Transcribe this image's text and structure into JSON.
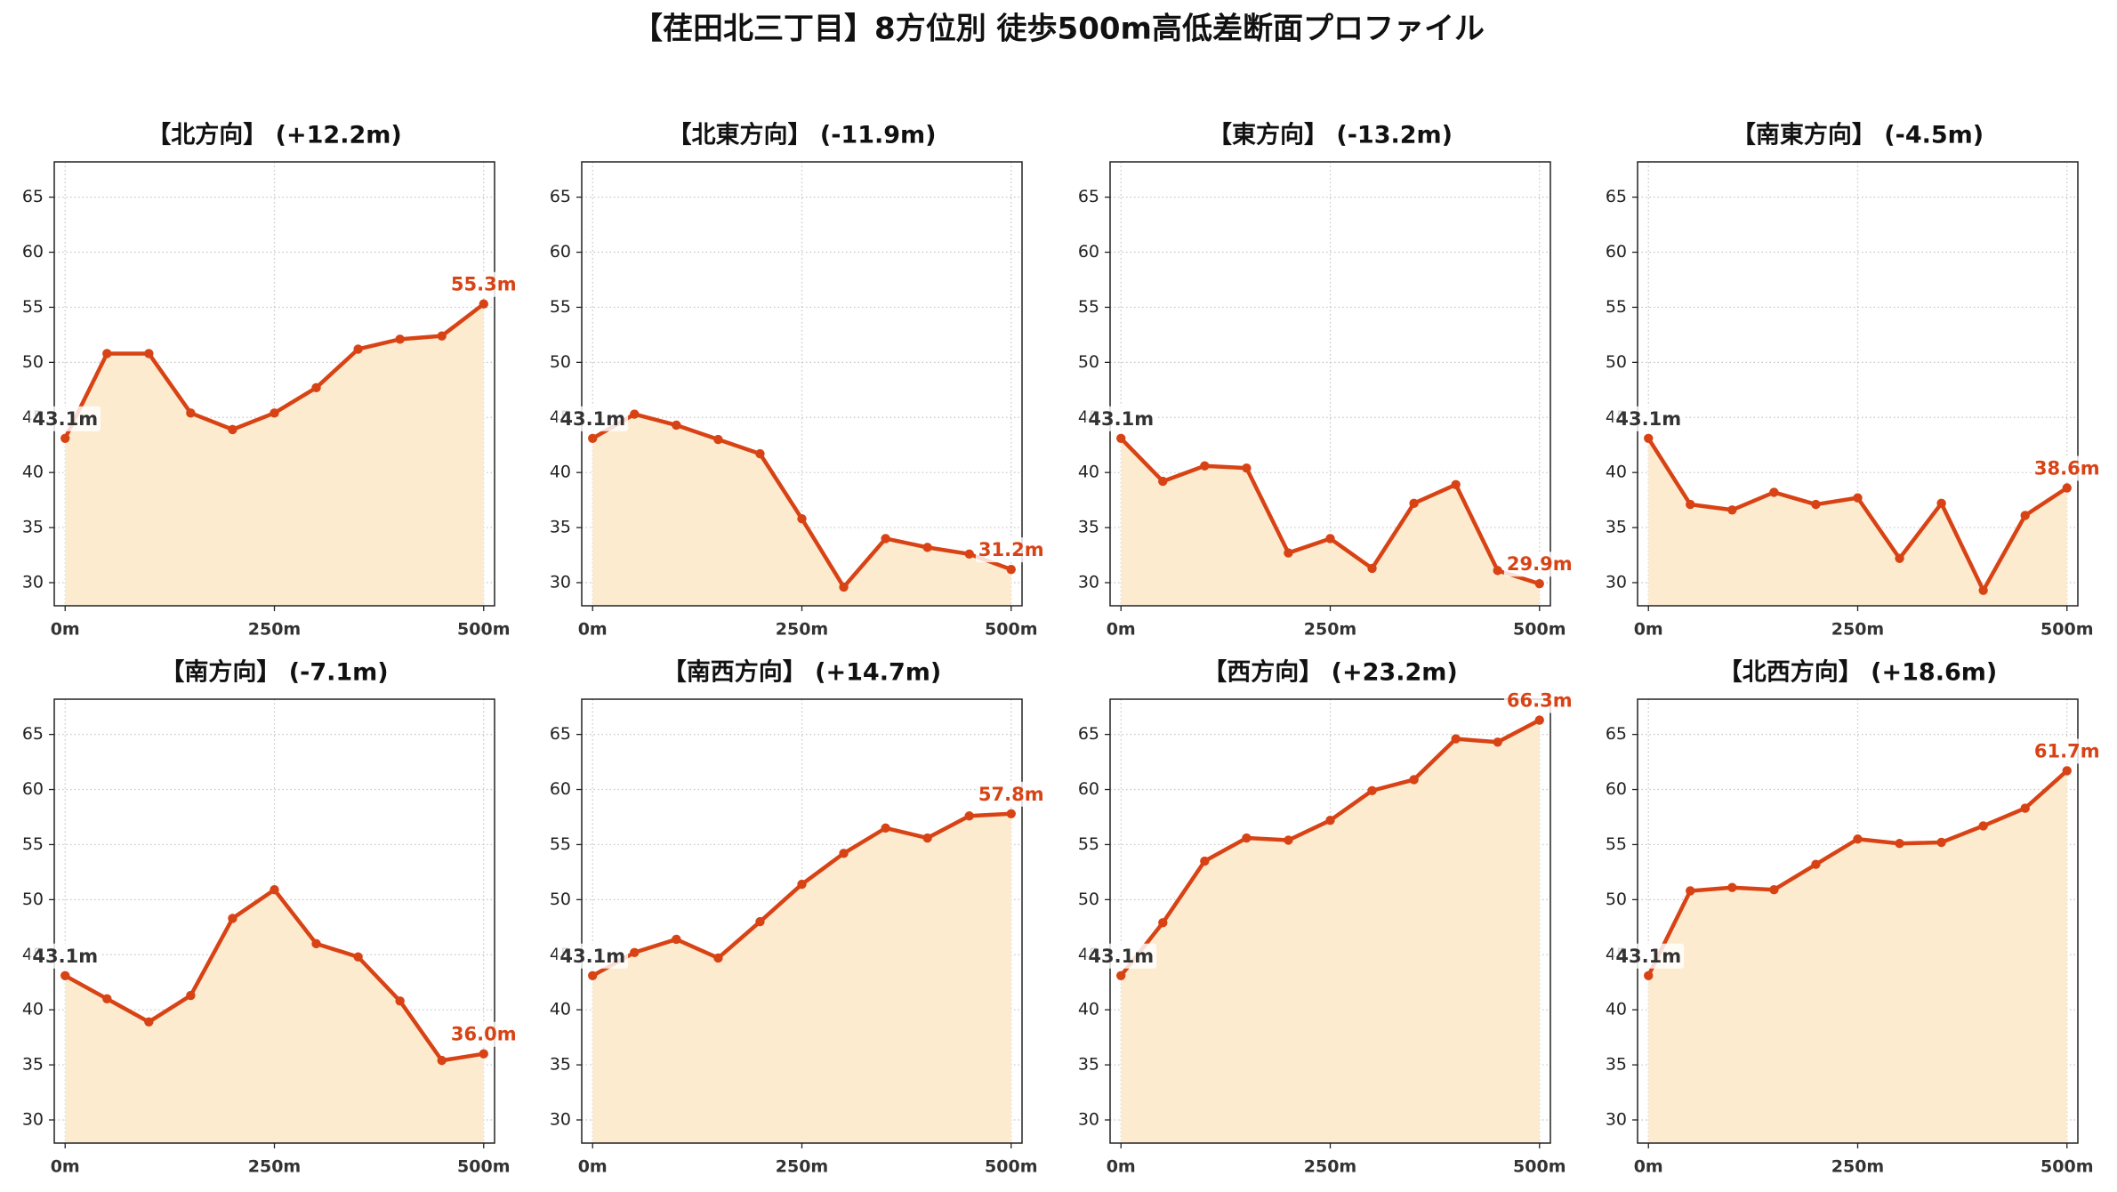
{
  "figure": {
    "title": "【荏田北三丁目】8方位別 徒歩500m高低差断面プロファイル"
  },
  "colors": {
    "line": "#d84315",
    "fill": "#fdebd0",
    "start_label": "#333333",
    "end_label": "#d84315",
    "axes": "#222222"
  },
  "chart_data": [
    {
      "type": "area",
      "title": "【北方向】 (+12.2m)",
      "x": [
        0,
        50,
        100,
        150,
        200,
        250,
        300,
        350,
        400,
        450,
        500
      ],
      "y": [
        43.1,
        50.8,
        50.8,
        45.4,
        43.9,
        45.4,
        47.7,
        51.2,
        52.1,
        52.4,
        55.3
      ],
      "start_label": "43.1m",
      "end_label": "55.3m",
      "xlim": [
        -13,
        513
      ],
      "ylim": [
        27.9,
        68.2
      ],
      "x_ticks": [
        0,
        250,
        500
      ],
      "x_tick_labels": [
        "0m",
        "250m",
        "500m"
      ],
      "y_ticks": [
        30,
        35,
        40,
        45,
        50,
        55,
        60,
        65
      ],
      "y_tick_labels": [
        "30",
        "35",
        "40",
        "45",
        "50",
        "55",
        "60",
        "65"
      ],
      "grid": true
    },
    {
      "type": "area",
      "title": "【北東方向】 (-11.9m)",
      "x": [
        0,
        50,
        100,
        150,
        200,
        250,
        300,
        350,
        400,
        450,
        500
      ],
      "y": [
        43.1,
        45.3,
        44.3,
        43.0,
        41.7,
        35.8,
        29.6,
        34.0,
        33.2,
        32.6,
        31.2
      ],
      "start_label": "43.1m",
      "end_label": "31.2m",
      "xlim": [
        -13,
        513
      ],
      "ylim": [
        27.9,
        68.2
      ],
      "x_ticks": [
        0,
        250,
        500
      ],
      "x_tick_labels": [
        "0m",
        "250m",
        "500m"
      ],
      "y_ticks": [
        30,
        35,
        40,
        45,
        50,
        55,
        60,
        65
      ],
      "y_tick_labels": [
        "30",
        "35",
        "40",
        "45",
        "50",
        "55",
        "60",
        "65"
      ],
      "grid": true
    },
    {
      "type": "area",
      "title": "【東方向】 (-13.2m)",
      "x": [
        0,
        50,
        100,
        150,
        200,
        250,
        300,
        350,
        400,
        450,
        500
      ],
      "y": [
        43.1,
        39.2,
        40.6,
        40.4,
        32.7,
        34.0,
        31.3,
        37.2,
        38.9,
        31.1,
        29.9
      ],
      "start_label": "43.1m",
      "end_label": "29.9m",
      "xlim": [
        -13,
        513
      ],
      "ylim": [
        27.9,
        68.2
      ],
      "x_ticks": [
        0,
        250,
        500
      ],
      "x_tick_labels": [
        "0m",
        "250m",
        "500m"
      ],
      "y_ticks": [
        30,
        35,
        40,
        45,
        50,
        55,
        60,
        65
      ],
      "y_tick_labels": [
        "30",
        "35",
        "40",
        "45",
        "50",
        "55",
        "60",
        "65"
      ],
      "grid": true
    },
    {
      "type": "area",
      "title": "【南東方向】 (-4.5m)",
      "x": [
        0,
        50,
        100,
        150,
        200,
        250,
        300,
        350,
        400,
        450,
        500
      ],
      "y": [
        43.1,
        37.1,
        36.6,
        38.2,
        37.1,
        37.7,
        32.2,
        37.2,
        29.3,
        36.1,
        38.6
      ],
      "start_label": "43.1m",
      "end_label": "38.6m",
      "xlim": [
        -13,
        513
      ],
      "ylim": [
        27.9,
        68.2
      ],
      "x_ticks": [
        0,
        250,
        500
      ],
      "x_tick_labels": [
        "0m",
        "250m",
        "500m"
      ],
      "y_ticks": [
        30,
        35,
        40,
        45,
        50,
        55,
        60,
        65
      ],
      "y_tick_labels": [
        "30",
        "35",
        "40",
        "45",
        "50",
        "55",
        "60",
        "65"
      ],
      "grid": true
    },
    {
      "type": "area",
      "title": "【南方向】 (-7.1m)",
      "x": [
        0,
        50,
        100,
        150,
        200,
        250,
        300,
        350,
        400,
        450,
        500
      ],
      "y": [
        43.1,
        41.0,
        38.9,
        41.3,
        48.3,
        50.9,
        46.0,
        44.8,
        40.8,
        35.4,
        36.0
      ],
      "start_label": "43.1m",
      "end_label": "36.0m",
      "xlim": [
        -13,
        513
      ],
      "ylim": [
        27.9,
        68.2
      ],
      "x_ticks": [
        0,
        250,
        500
      ],
      "x_tick_labels": [
        "0m",
        "250m",
        "500m"
      ],
      "y_ticks": [
        30,
        35,
        40,
        45,
        50,
        55,
        60,
        65
      ],
      "y_tick_labels": [
        "30",
        "35",
        "40",
        "45",
        "50",
        "55",
        "60",
        "65"
      ],
      "grid": true
    },
    {
      "type": "area",
      "title": "【南西方向】 (+14.7m)",
      "x": [
        0,
        50,
        100,
        150,
        200,
        250,
        300,
        350,
        400,
        450,
        500
      ],
      "y": [
        43.1,
        45.2,
        46.4,
        44.7,
        48.0,
        51.4,
        54.2,
        56.5,
        55.6,
        57.6,
        57.8
      ],
      "start_label": "43.1m",
      "end_label": "57.8m",
      "xlim": [
        -13,
        513
      ],
      "ylim": [
        27.9,
        68.2
      ],
      "x_ticks": [
        0,
        250,
        500
      ],
      "x_tick_labels": [
        "0m",
        "250m",
        "500m"
      ],
      "y_ticks": [
        30,
        35,
        40,
        45,
        50,
        55,
        60,
        65
      ],
      "y_tick_labels": [
        "30",
        "35",
        "40",
        "45",
        "50",
        "55",
        "60",
        "65"
      ],
      "grid": true
    },
    {
      "type": "area",
      "title": "【西方向】 (+23.2m)",
      "x": [
        0,
        50,
        100,
        150,
        200,
        250,
        300,
        350,
        400,
        450,
        500
      ],
      "y": [
        43.1,
        47.9,
        53.5,
        55.6,
        55.4,
        57.2,
        59.9,
        60.9,
        64.6,
        64.3,
        66.3
      ],
      "start_label": "43.1m",
      "end_label": "66.3m",
      "xlim": [
        -13,
        513
      ],
      "ylim": [
        27.9,
        68.2
      ],
      "x_ticks": [
        0,
        250,
        500
      ],
      "x_tick_labels": [
        "0m",
        "250m",
        "500m"
      ],
      "y_ticks": [
        30,
        35,
        40,
        45,
        50,
        55,
        60,
        65
      ],
      "y_tick_labels": [
        "30",
        "35",
        "40",
        "45",
        "50",
        "55",
        "60",
        "65"
      ],
      "grid": true
    },
    {
      "type": "area",
      "title": "【北西方向】 (+18.6m)",
      "x": [
        0,
        50,
        100,
        150,
        200,
        250,
        300,
        350,
        400,
        450,
        500
      ],
      "y": [
        43.1,
        50.8,
        51.1,
        50.9,
        53.2,
        55.5,
        55.1,
        55.2,
        56.7,
        58.3,
        61.7
      ],
      "start_label": "43.1m",
      "end_label": "61.7m",
      "xlim": [
        -13,
        513
      ],
      "ylim": [
        27.9,
        68.2
      ],
      "x_ticks": [
        0,
        250,
        500
      ],
      "x_tick_labels": [
        "0m",
        "250m",
        "500m"
      ],
      "y_ticks": [
        30,
        35,
        40,
        45,
        50,
        55,
        60,
        65
      ],
      "y_tick_labels": [
        "30",
        "35",
        "40",
        "45",
        "50",
        "55",
        "60",
        "65"
      ],
      "grid": true
    }
  ]
}
